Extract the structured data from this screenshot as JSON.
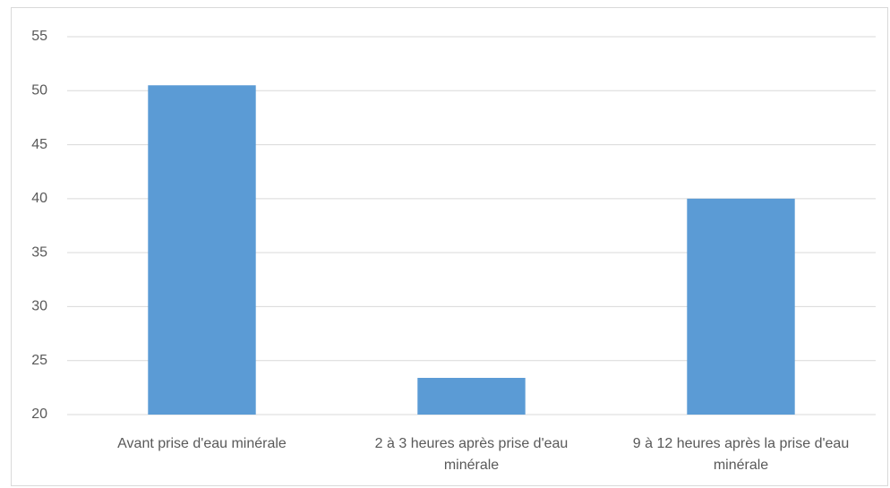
{
  "chart_data": {
    "type": "bar",
    "categories": [
      "Avant prise d'eau minérale",
      "2 à 3 heures après prise d'eau minérale",
      "9 à 12 heures après la prise d'eau minérale"
    ],
    "values": [
      50.5,
      23.4,
      40
    ],
    "color": "#5b9bd5",
    "ylim": [
      20,
      55
    ],
    "yticks": [
      20,
      25,
      30,
      35,
      40,
      45,
      50,
      55
    ],
    "grid": true
  }
}
